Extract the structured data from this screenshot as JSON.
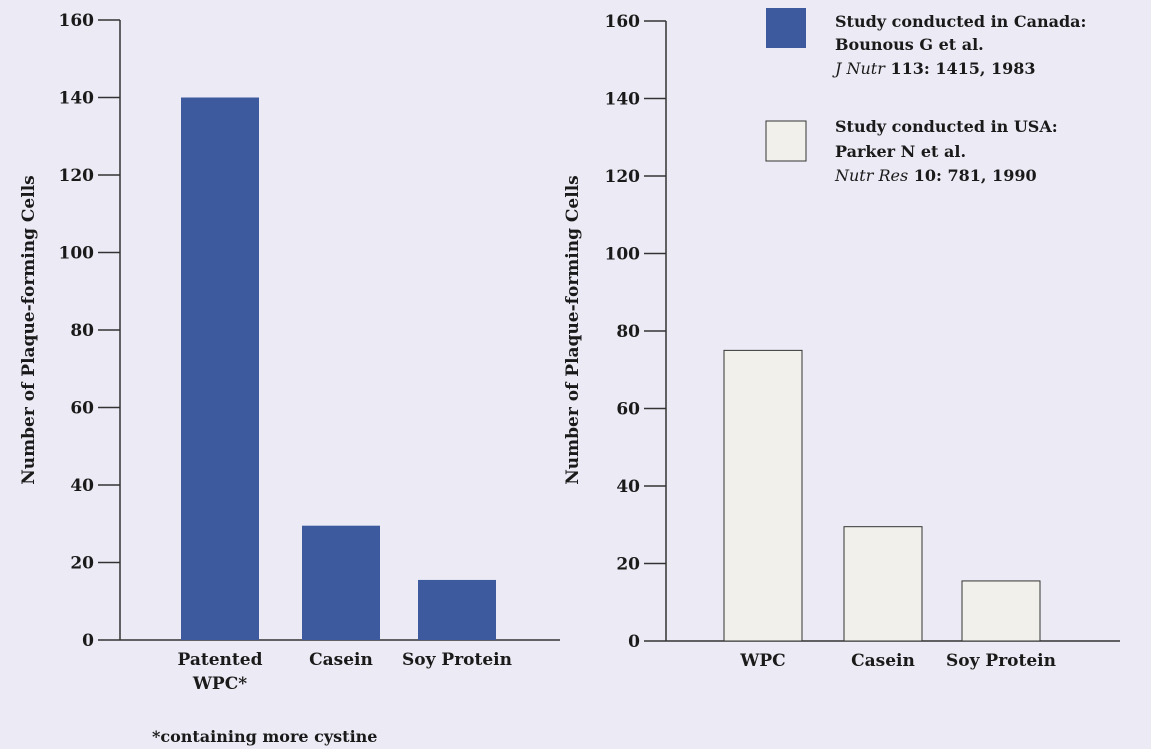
{
  "colors": {
    "canada": "#3d5a9e",
    "usa": "#f1f0ea",
    "usa_stroke": "#333333",
    "axis": "#333333"
  },
  "chart_data": [
    {
      "type": "bar",
      "ylabel": "Number of Plaque-forming Cells",
      "ylim": [
        0,
        160
      ],
      "yticks": [
        0,
        20,
        40,
        60,
        80,
        100,
        120,
        140,
        160
      ],
      "categories": [
        [
          "Patented",
          "WPC*"
        ],
        [
          "Casein"
        ],
        [
          "Soy Protein"
        ]
      ],
      "series": [
        {
          "name": "Study conducted in Canada:",
          "values": [
            140,
            29.5,
            15.5
          ]
        }
      ],
      "footnote": "*containing more cystine"
    },
    {
      "type": "bar",
      "ylabel": "Number of Plaque-forming Cells",
      "ylim": [
        0,
        160
      ],
      "yticks": [
        0,
        20,
        40,
        60,
        80,
        100,
        120,
        140,
        160
      ],
      "categories": [
        [
          "WPC"
        ],
        [
          "Casein"
        ],
        [
          "Soy Protein"
        ]
      ],
      "series": [
        {
          "name": "Study conducted in USA:",
          "values": [
            75,
            29.5,
            15.5
          ]
        }
      ]
    }
  ],
  "legend": [
    {
      "line1": "Study conducted in Canada:",
      "line2": "Bounous G et al.",
      "journal": "J Nutr",
      "ref": " 113: 1415, 1983"
    },
    {
      "line1": "Study conducted in USA:",
      "line2": "Parker N et al.",
      "journal": "Nutr Res",
      "ref": " 10: 781, 1990"
    }
  ]
}
